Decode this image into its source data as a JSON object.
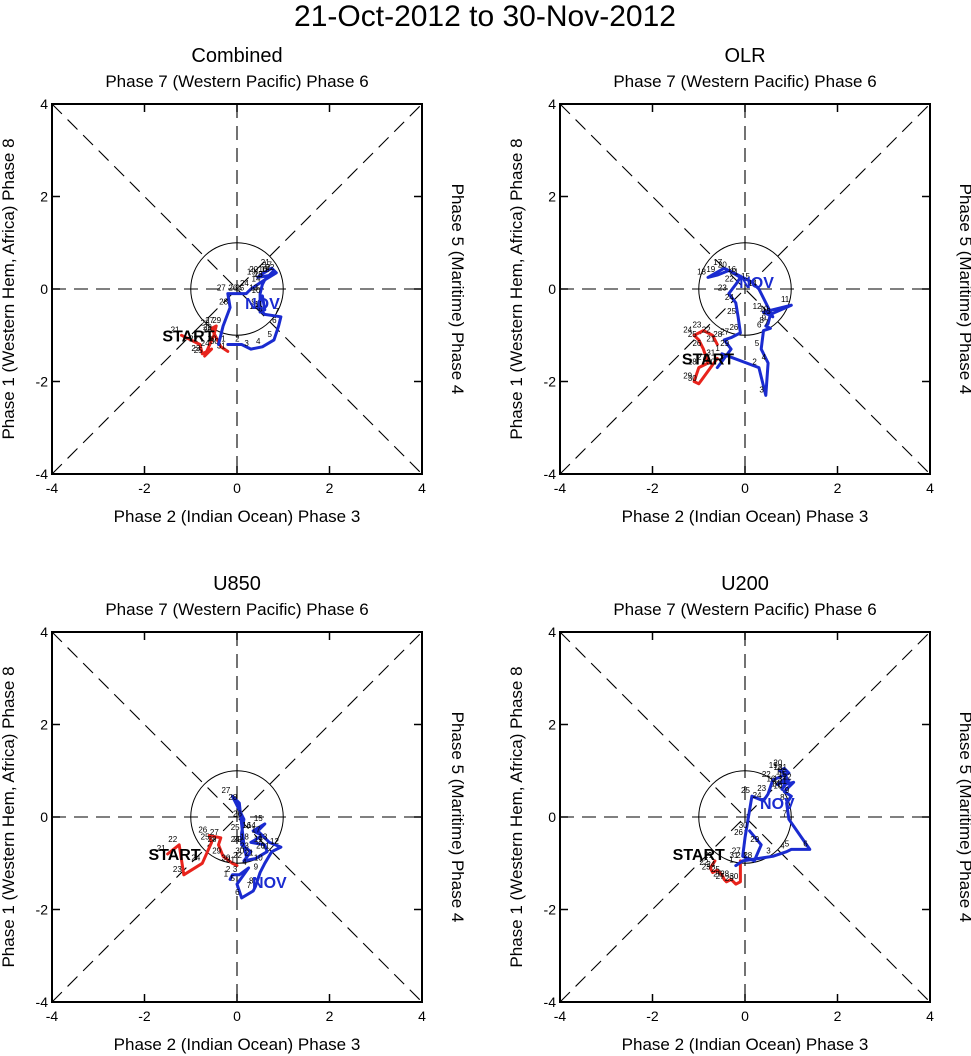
{
  "title": "21-Oct-2012 to 30-Nov-2012",
  "chart_data": [
    {
      "type": "line",
      "title": "Combined",
      "top_label": "Phase 7 (Western Pacific) Phase 6",
      "xlabel": "Phase 2 (Indian Ocean) Phase 3",
      "left_label": "Phase 1 (Western Hem, Africa) Phase 8",
      "right_label": "Phase 5 (Maritime) Phase 4",
      "xlim": [
        -4,
        4
      ],
      "ylim": [
        -4,
        4
      ],
      "xticks": [
        -4,
        -2,
        0,
        2,
        4
      ],
      "yticks": [
        -4,
        -2,
        0,
        2,
        4
      ],
      "xtick_labels": [
        "-4",
        "-2",
        "0",
        "2",
        "4"
      ],
      "ytick_labels": [
        "-4",
        "-2",
        "0",
        "2",
        "4"
      ],
      "unit_circle_radius": 1,
      "start_label": "START",
      "start_xy": [
        -1.05,
        -1.0
      ],
      "series": [
        {
          "name": "Oct",
          "label": "",
          "color": "#e8231c",
          "x": [
            -1.2,
            -0.8,
            -0.75,
            -0.55,
            -0.7,
            -0.5,
            -0.45,
            -0.55,
            -0.5,
            -0.35,
            -0.2
          ],
          "y": [
            -1.0,
            -1.2,
            -1.4,
            -1.3,
            -1.45,
            -1.0,
            -0.8,
            -0.85,
            -0.95,
            -1.25,
            -1.35
          ],
          "days": [
            "21",
            "22",
            "23",
            "24",
            "25",
            "26",
            "27",
            "28",
            "29",
            "30",
            "31"
          ]
        },
        {
          "name": "Nov",
          "label": "NOV",
          "color": "#1a2bd0",
          "label_xy": [
            0.55,
            -0.3
          ],
          "x": [
            -0.2,
            0.1,
            0.3,
            0.55,
            0.8,
            0.9,
            0.95,
            0.6,
            0.45,
            0.55,
            0.6,
            0.5,
            0.5,
            0.55,
            0.6,
            0.7,
            0.8,
            0.75,
            0.45,
            0.5,
            0.75,
            0.85,
            0.6,
            0.3,
            0.2,
            0.05,
            -0.2,
            -0.15,
            -0.3,
            -0.4
          ],
          "y": [
            -1.2,
            -1.2,
            -1.3,
            -1.25,
            -1.1,
            -0.8,
            -0.6,
            -0.55,
            -0.4,
            -0.15,
            -0.45,
            -0.5,
            -0.1,
            0.1,
            0.2,
            0.3,
            0.4,
            0.3,
            0.25,
            0.3,
            0.45,
            0.35,
            0.2,
            0.0,
            -0.1,
            -0.1,
            -0.1,
            -0.4,
            -0.8,
            -1.2
          ],
          "days": [
            "1",
            "2",
            "3",
            "4",
            "5",
            "6",
            "7",
            "8",
            "9",
            "10",
            "11",
            "12",
            "13",
            "14",
            "15",
            "16",
            "17",
            "18",
            "19",
            "20",
            "21",
            "22",
            "23",
            "24",
            "25",
            "26",
            "27",
            "28",
            "29",
            "30"
          ]
        }
      ]
    },
    {
      "type": "line",
      "title": "OLR",
      "top_label": "Phase 7 (Western Pacific) Phase 6",
      "xlabel": "Phase 2 (Indian Ocean) Phase 3",
      "left_label": "Phase 1 (Western Hem, Africa) Phase 8",
      "right_label": "Phase 5 (Maritime) Phase 4",
      "xlim": [
        -4,
        4
      ],
      "ylim": [
        -4,
        4
      ],
      "xticks": [
        -4,
        -2,
        0,
        2,
        4
      ],
      "yticks": [
        -4,
        -2,
        0,
        2,
        4
      ],
      "xtick_labels": [
        "-4",
        "-2",
        "0",
        "2",
        "4"
      ],
      "ytick_labels": [
        "-4",
        "-2",
        "0",
        "2",
        "4"
      ],
      "unit_circle_radius": 1,
      "start_label": "START",
      "start_xy": [
        -0.8,
        -1.5
      ],
      "series": [
        {
          "name": "Oct",
          "label": "",
          "color": "#e8231c",
          "x": [
            -0.6,
            -0.7,
            -0.9,
            -1.1,
            -1.0,
            -0.9,
            -0.8,
            -1.0,
            -1.1,
            -1.0,
            -0.6
          ],
          "y": [
            -1.2,
            -1.0,
            -0.9,
            -1.0,
            -1.1,
            -1.3,
            -1.6,
            -1.7,
            -2.0,
            -2.05,
            -1.5
          ],
          "days": [
            "21",
            "22",
            "23",
            "24",
            "25",
            "26",
            "27",
            "28",
            "29",
            "30",
            "31"
          ]
        },
        {
          "name": "Nov",
          "label": "NOV",
          "color": "#1a2bd0",
          "label_xy": [
            0.25,
            0.15
          ],
          "x": [
            -0.5,
            0.3,
            0.45,
            0.5,
            0.35,
            0.4,
            0.55,
            0.45,
            0.5,
            0.55,
            1.0,
            0.4,
            0.6,
            0.3,
            0.15,
            -0.15,
            -0.45,
            -0.8,
            -0.6,
            -0.35,
            -0.1,
            -0.2,
            -0.35,
            -0.2,
            -0.15,
            -0.1,
            -0.3,
            -0.45,
            -0.3,
            -0.6
          ],
          "y": [
            -1.4,
            -1.7,
            -2.3,
            -1.6,
            -1.3,
            -0.9,
            -0.85,
            -0.8,
            -0.75,
            -0.55,
            -0.35,
            -0.5,
            -0.6,
            0.0,
            0.15,
            0.3,
            0.45,
            0.25,
            0.3,
            0.4,
            0.25,
            0.1,
            -0.1,
            -0.3,
            -0.6,
            -0.95,
            -1.05,
            -1.1,
            -1.3,
            -1.7
          ],
          "days": [
            "1",
            "2",
            "3",
            "4",
            "5",
            "6",
            "7",
            "8",
            "9",
            "10",
            "11",
            "12",
            "13",
            "14",
            "15",
            "16",
            "17",
            "18",
            "19",
            "20",
            "21",
            "22",
            "23",
            "24",
            "25",
            "26",
            "27",
            "28",
            "29",
            "30"
          ]
        }
      ]
    },
    {
      "type": "line",
      "title": "U850",
      "top_label": "Phase 7 (Western Pacific) Phase 6",
      "xlabel": "Phase 2 (Indian Ocean) Phase 3",
      "left_label": "Phase 1 (Western Hem, Africa) Phase 8",
      "right_label": "Phase 5 (Maritime) Phase 4",
      "xlim": [
        -4,
        4
      ],
      "ylim": [
        -4,
        4
      ],
      "xticks": [
        -4,
        -2,
        0,
        2,
        4
      ],
      "yticks": [
        -4,
        -2,
        0,
        2,
        4
      ],
      "xtick_labels": [
        "-4",
        "-2",
        "0",
        "2",
        "4"
      ],
      "ytick_labels": [
        "-4",
        "-2",
        "0",
        "2",
        "4"
      ],
      "unit_circle_radius": 1,
      "start_label": "START",
      "start_xy": [
        -1.35,
        -0.8
      ],
      "series": [
        {
          "name": "Oct",
          "label": "",
          "color": "#e8231c",
          "x": [
            -1.5,
            -1.25,
            -1.15,
            -0.75,
            -0.55,
            -0.6,
            -0.35,
            -0.4,
            -0.3,
            -0.1,
            0.0
          ],
          "y": [
            -0.8,
            -0.6,
            -1.25,
            -1.0,
            -0.55,
            -0.4,
            -0.45,
            -0.6,
            -0.85,
            -1.0,
            -1.05
          ],
          "days": [
            "21",
            "22",
            "23",
            "24",
            "25",
            "26",
            "27",
            "28",
            "29",
            "30",
            "31"
          ]
        },
        {
          "name": "Nov",
          "label": "NOV",
          "color": "#1a2bd0",
          "label_xy": [
            0.7,
            -1.4
          ],
          "x": [
            -0.15,
            -0.1,
            0.05,
            0.25,
            0.0,
            0.1,
            0.35,
            0.4,
            0.5,
            0.6,
            0.75,
            0.95,
            0.7,
            0.45,
            0.6,
            0.35,
            0.55,
            0.3,
            0.6,
            0.65,
            0.4,
            0.15,
            0.3,
            0.1,
            0.1,
            0.15,
            -0.1,
            0.05,
            0.15,
            0.2
          ],
          "y": [
            -1.35,
            -1.25,
            -1.25,
            -1.1,
            -1.45,
            -1.75,
            -1.6,
            -1.5,
            -1.2,
            -1.0,
            -0.75,
            -0.65,
            -0.55,
            -0.3,
            -0.15,
            -0.3,
            -0.4,
            -0.55,
            -0.6,
            -0.75,
            -0.9,
            -0.95,
            -0.75,
            -0.6,
            -0.35,
            -0.05,
            0.45,
            0.3,
            -0.6,
            -0.85
          ],
          "days": [
            "1",
            "2",
            "3",
            "4",
            "5",
            "6",
            "7",
            "8",
            "9",
            "10",
            "11",
            "12",
            "13",
            "14",
            "15",
            "16",
            "17",
            "18",
            "19",
            "20",
            "21",
            "22",
            "23",
            "24",
            "25",
            "26",
            "27",
            "28",
            "29",
            "30"
          ]
        }
      ]
    },
    {
      "type": "line",
      "title": "U200",
      "top_label": "Phase 7 (Western Pacific) Phase 6",
      "xlabel": "Phase 2 (Indian Ocean) Phase 3",
      "left_label": "Phase 1 (Western Hem, Africa) Phase 8",
      "right_label": "Phase 5 (Maritime) Phase 4",
      "xlim": [
        -4,
        4
      ],
      "ylim": [
        -4,
        4
      ],
      "xticks": [
        -4,
        -2,
        0,
        2,
        4
      ],
      "yticks": [
        -4,
        -2,
        0,
        2,
        4
      ],
      "xtick_labels": [
        "-4",
        "-2",
        "0",
        "2",
        "4"
      ],
      "ytick_labels": [
        "-4",
        "-2",
        "0",
        "2",
        "4"
      ],
      "unit_circle_radius": 1,
      "start_label": "START",
      "start_xy": [
        -1.0,
        -0.8
      ],
      "series": [
        {
          "name": "Oct",
          "label": "",
          "color": "#e8231c",
          "x": [
            -0.65,
            -0.75,
            -0.7,
            -0.6,
            -0.5,
            -0.45,
            -0.4,
            -0.3,
            -0.2,
            -0.1,
            -0.1
          ],
          "y": [
            -0.95,
            -1.1,
            -1.2,
            -1.15,
            -1.25,
            -1.35,
            -1.4,
            -1.35,
            -1.45,
            -1.4,
            -0.95
          ],
          "days": [
            "21",
            "22",
            "23",
            "24",
            "25",
            "26",
            "27",
            "28",
            "29",
            "30",
            "31"
          ]
        },
        {
          "name": "Nov",
          "label": "NOV",
          "color": "#1a2bd0",
          "label_xy": [
            0.7,
            0.3
          ],
          "x": [
            -0.2,
            -0.05,
            0.6,
            0.9,
            1.0,
            1.4,
            0.95,
            0.9,
            1.0,
            0.85,
            0.95,
            1.05,
            0.85,
            0.8,
            0.95,
            0.7,
            0.9,
            0.85,
            0.75,
            0.85,
            0.95,
            0.6,
            0.5,
            0.4,
            0.15,
            0.0,
            -0.05,
            0.2,
            0.35,
            0.1
          ],
          "y": [
            -1.05,
            -0.95,
            -0.85,
            -0.75,
            -0.7,
            -0.7,
            -0.05,
            0.3,
            0.45,
            0.55,
            0.65,
            0.75,
            0.7,
            0.6,
            0.8,
            0.7,
            0.85,
            0.95,
            1.0,
            1.05,
            0.95,
            0.8,
            0.5,
            0.35,
            0.45,
            -0.45,
            -0.85,
            -0.95,
            -0.6,
            -0.3
          ],
          "days": [
            "1",
            "2",
            "3",
            "4",
            "5",
            "6",
            "7",
            "8",
            "9",
            "10",
            "11",
            "12",
            "13",
            "14",
            "15",
            "16",
            "17",
            "18",
            "19",
            "20",
            "21",
            "22",
            "23",
            "24",
            "25",
            "26",
            "27",
            "28",
            "29",
            "30"
          ]
        }
      ]
    }
  ]
}
